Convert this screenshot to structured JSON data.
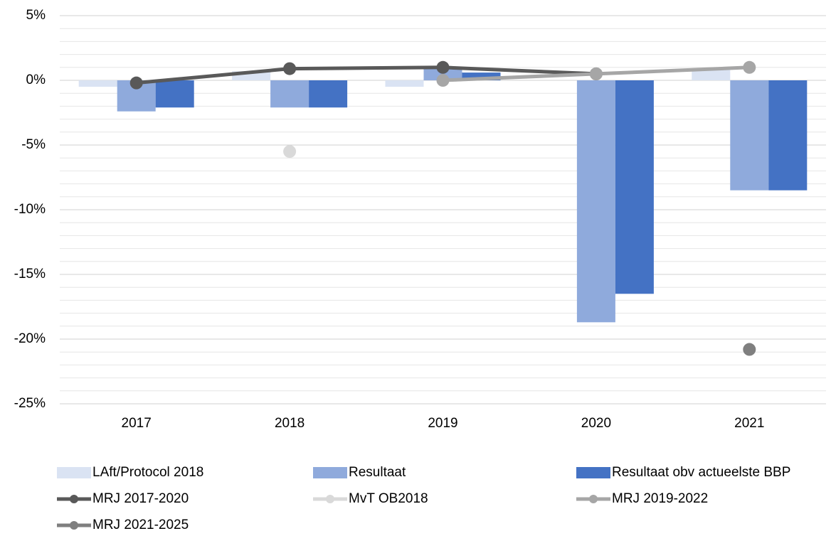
{
  "chart_data": {
    "type": "combo",
    "categories": [
      "2017",
      "2018",
      "2019",
      "2020",
      "2021"
    ],
    "series": [
      {
        "name": "LAft/Protocol 2018",
        "type": "bar",
        "color": "#dae3f3",
        "values": [
          -0.5,
          0.7,
          -0.5,
          0,
          0.8
        ]
      },
      {
        "name": "Resultaat",
        "type": "bar",
        "color": "#8faadc",
        "values": [
          -2.4,
          -2.1,
          0.9,
          -18.7,
          -8.5
        ]
      },
      {
        "name": "Resultaat obv actueelste BBP",
        "type": "bar",
        "color": "#4472c4",
        "values": [
          -2.1,
          -2.1,
          0.6,
          -16.5,
          -8.5
        ]
      },
      {
        "name": "MRJ 2017-2020",
        "type": "line",
        "color": "#595959",
        "values": [
          -0.2,
          0.9,
          1.0,
          0.5,
          null
        ]
      },
      {
        "name": "MvT OB2018",
        "type": "line",
        "color": "#d9d9d9",
        "values": [
          null,
          -5.5,
          null,
          null,
          null
        ]
      },
      {
        "name": "MRJ 2019-2022",
        "type": "line",
        "color": "#a6a6a6",
        "values": [
          null,
          null,
          0.0,
          0.5,
          1.0
        ]
      },
      {
        "name": "MRJ 2021-2025",
        "type": "line",
        "color": "#7f7f7f",
        "values": [
          null,
          null,
          null,
          null,
          -20.8
        ]
      }
    ],
    "ylim": [
      -25,
      5
    ],
    "yticks": [
      {
        "value": -25,
        "label": "-25%"
      },
      {
        "value": -20,
        "label": "-20%"
      },
      {
        "value": -15,
        "label": "-15%"
      },
      {
        "value": -10,
        "label": "-10%"
      },
      {
        "value": -5,
        "label": "-5%"
      },
      {
        "value": 0,
        "label": "0%"
      },
      {
        "value": 5,
        "label": "5%"
      }
    ],
    "yminorticks": [
      -24,
      -23,
      -22,
      -21,
      -19,
      -18,
      -17,
      -16,
      -14,
      -13,
      -12,
      -11,
      -9,
      -8,
      -7,
      -6,
      -4,
      -3,
      -2,
      -1,
      1,
      2,
      3,
      4
    ],
    "grid": true,
    "legend": "bottom"
  }
}
